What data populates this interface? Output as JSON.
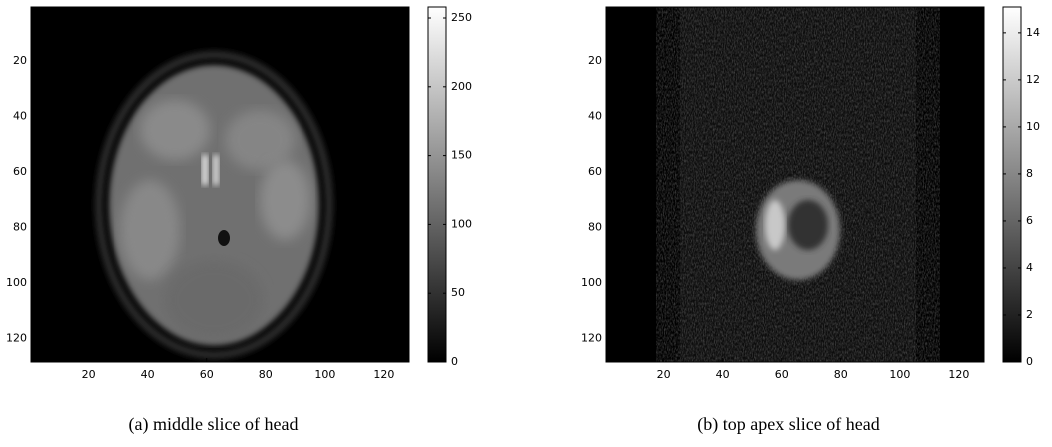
{
  "chart_data": [
    {
      "type": "image",
      "caption": "(a) middle slice of head",
      "xlim": [
        0.5,
        128.5
      ],
      "xticks": [
        20,
        40,
        60,
        80,
        100,
        120
      ],
      "ylim": [
        128.5,
        0.5
      ],
      "yticks": [
        20,
        40,
        60,
        80,
        100,
        120
      ],
      "colormap": "gray",
      "clim": [
        0,
        258
      ],
      "cticks": [
        0,
        50,
        100,
        150,
        200,
        250
      ]
    },
    {
      "type": "image",
      "caption": "(b) top apex slice of head",
      "xlim": [
        0.5,
        128.5
      ],
      "xticks": [
        20,
        40,
        60,
        80,
        100,
        120
      ],
      "ylim": [
        128.5,
        0.5
      ],
      "yticks": [
        20,
        40,
        60,
        80,
        100,
        120
      ],
      "colormap": "gray",
      "clim": [
        0,
        15.1
      ],
      "cticks": [
        0,
        2,
        4,
        6,
        8,
        10,
        12,
        14
      ]
    }
  ]
}
